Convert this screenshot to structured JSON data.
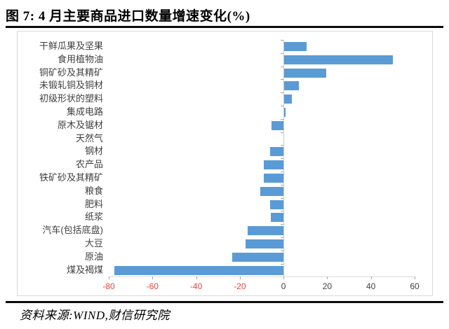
{
  "header": {
    "title": "图 7: 4 月主要商品进口数量增速变化(%)"
  },
  "footer": {
    "source": "资料来源:WIND,财信研究院"
  },
  "chart_data": {
    "type": "bar",
    "orientation": "horizontal",
    "title": "4月主要商品进口数量增速变化(%)",
    "categories": [
      "干鲜瓜果及坚果",
      "食用植物油",
      "铜矿砂及其精矿",
      "未锻轧铜及铜材",
      "初级形状的塑料",
      "集成电路",
      "原木及锯材",
      "天然气",
      "钢材",
      "农产品",
      "铁矿砂及其精矿",
      "粮食",
      "肥料",
      "纸浆",
      "汽车(包括底盘)",
      "大豆",
      "原油",
      "煤及褐煤"
    ],
    "values": [
      10.7,
      50.2,
      19.5,
      6.9,
      3.8,
      1.0,
      -5.4,
      0,
      -6.1,
      -9.1,
      -9.1,
      -10.6,
      -6.1,
      -5.8,
      -16.4,
      -17.3,
      -23.5,
      -77.6
    ],
    "xlabel": "",
    "ylabel": "",
    "xlim": [
      -80,
      60
    ],
    "xticks": [
      -80,
      -60,
      -40,
      -20,
      0,
      20,
      40,
      60
    ],
    "grid": false,
    "legend": false,
    "colors": {
      "bar": "#5B9BD5",
      "category_axis_line": "#C9C9C9",
      "value_axis_line": "#D9D9D9",
      "tick_marks": "#A6A6A6",
      "tick_label": "#404040",
      "negative_tick_label": "#E0453C",
      "category_label": "#404040"
    }
  }
}
